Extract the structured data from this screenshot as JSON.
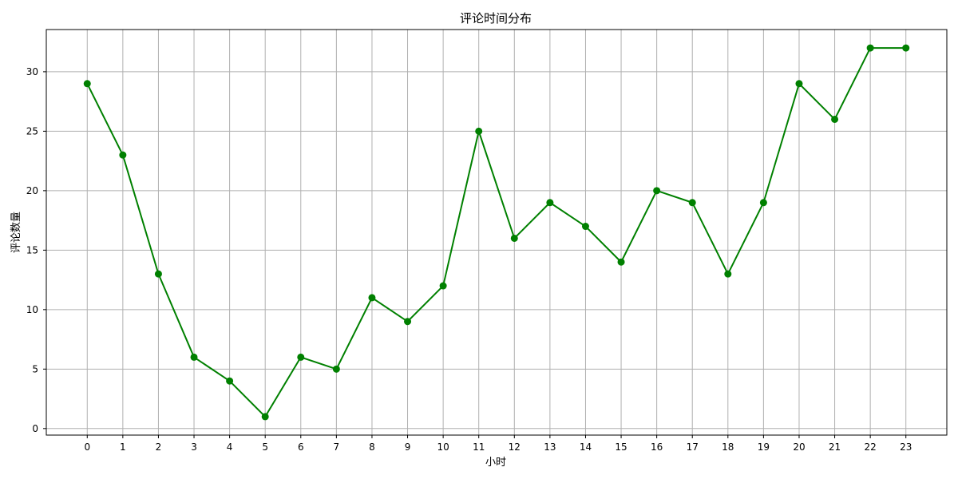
{
  "chart_data": {
    "type": "line",
    "title": "评论时间分布",
    "xlabel": "小时",
    "ylabel": "评论数量",
    "x": [
      0,
      1,
      2,
      3,
      4,
      5,
      6,
      7,
      8,
      9,
      10,
      11,
      12,
      13,
      14,
      15,
      16,
      17,
      18,
      19,
      20,
      21,
      22,
      23
    ],
    "series": [
      {
        "values": [
          29,
          23,
          13,
          6,
          4,
          1,
          6,
          5,
          11,
          9,
          12,
          25,
          16,
          19,
          17,
          14,
          20,
          19,
          13,
          19,
          29,
          26,
          32,
          32
        ],
        "color": "#008000",
        "marker": "circle"
      }
    ],
    "xlim": [
      -1.15,
      24.15
    ],
    "ylim": [
      -0.55,
      33.55
    ],
    "yticks": [
      0,
      5,
      10,
      15,
      20,
      25,
      30
    ],
    "grid": true,
    "grid_color": "#b0b0b0"
  }
}
